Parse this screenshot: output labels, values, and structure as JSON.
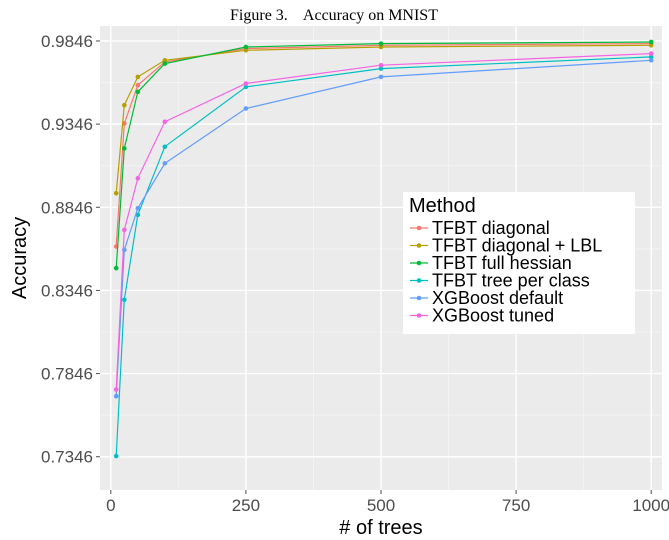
{
  "figure_caption": "Figure 3.    Accuracy on MNIST",
  "chart_data": {
    "type": "line",
    "title": "",
    "xlabel": "# of trees",
    "ylabel": "Accuracy",
    "xlim": [
      -20,
      1020
    ],
    "ylim": [
      0.7146,
      0.9936
    ],
    "x_ticks": [
      0,
      250,
      500,
      750,
      1000
    ],
    "x_tick_labels": [
      "0",
      "250",
      "500",
      "750",
      "1000"
    ],
    "y_ticks": [
      0.7346,
      0.7846,
      0.8346,
      0.8846,
      0.9346,
      0.9846
    ],
    "y_tick_labels": [
      "0.7346",
      "0.7846",
      "0.8346",
      "0.8846",
      "0.9346",
      "0.9846"
    ],
    "grid": true,
    "legend_title": "Method",
    "legend_position": "right",
    "x": [
      10,
      25,
      50,
      100,
      250,
      500,
      1000
    ],
    "series": [
      {
        "name": "TFBT diagonal",
        "color": "#F8766D",
        "values": [
          0.861,
          0.935,
          0.958,
          0.972,
          0.98,
          0.982,
          0.983
        ]
      },
      {
        "name": "TFBT diagonal + LBL",
        "color": "#B79F00",
        "values": [
          0.893,
          0.946,
          0.963,
          0.973,
          0.979,
          0.981,
          0.982
        ]
      },
      {
        "name": "TFBT full hessian",
        "color": "#00BA38",
        "values": [
          0.848,
          0.92,
          0.954,
          0.971,
          0.981,
          0.983,
          0.984
        ]
      },
      {
        "name": "TFBT tree per class",
        "color": "#00BFC4",
        "values": [
          0.735,
          0.829,
          0.88,
          0.921,
          0.957,
          0.968,
          0.975
        ]
      },
      {
        "name": "XGBoost default",
        "color": "#619CFF",
        "values": [
          0.771,
          0.859,
          0.884,
          0.911,
          0.944,
          0.963,
          0.973
        ]
      },
      {
        "name": "XGBoost tuned",
        "color": "#F564E3",
        "values": [
          0.775,
          0.871,
          0.902,
          0.936,
          0.959,
          0.97,
          0.977
        ]
      }
    ]
  }
}
